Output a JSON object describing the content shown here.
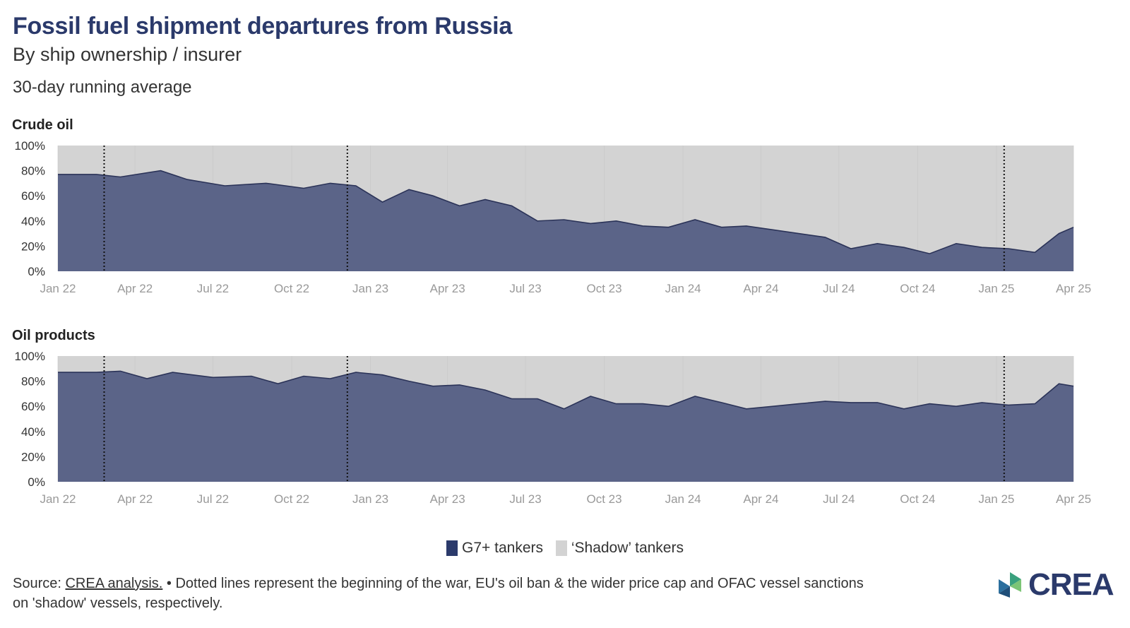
{
  "header": {
    "title": "Fossil fuel shipment departures from Russia",
    "subtitle": "By ship ownership / insurer",
    "note": "30-day running average"
  },
  "legend": {
    "items": [
      {
        "label": "G7+ tankers",
        "color": "#5b6488"
      },
      {
        "label": "‘Shadow’ tankers",
        "color": "#d3d3d3"
      }
    ]
  },
  "footer": {
    "source_prefix": "Source: ",
    "source_link": "CREA analysis.",
    "text": " • Dotted lines represent the beginning of the war, EU's oil ban & the wider price cap and OFAC vessel sanctions on 'shadow' vessels, respectively."
  },
  "logo": {
    "text": "CREA"
  },
  "colors": {
    "g7": "#5b6488",
    "g7_line": "#2b3358",
    "shadow": "#d3d3d3",
    "grid": "#c6c6c6",
    "tick": "#999999"
  },
  "chart_data": [
    {
      "type": "area",
      "title": "Crude oil",
      "x_ticks": [
        "Jan 22",
        "Apr 22",
        "Jul 22",
        "Oct 22",
        "Jan 23",
        "Apr 23",
        "Jul 23",
        "Oct 23",
        "Jan 24",
        "Apr 24",
        "Jul 24",
        "Oct 24",
        "Jan 25",
        "Apr 25"
      ],
      "y_ticks": [
        "0%",
        "20%",
        "40%",
        "60%",
        "80%",
        "100%"
      ],
      "ylim": [
        0,
        100
      ],
      "stacked": true,
      "event_lines": [
        "2022-02-24",
        "2022-12-05",
        "2025-01-10"
      ],
      "series": [
        {
          "name": "G7+ tankers",
          "x": [
            "2022-01-01",
            "2022-02-15",
            "2022-03-15",
            "2022-05-01",
            "2022-06-01",
            "2022-07-15",
            "2022-09-01",
            "2022-10-15",
            "2022-11-15",
            "2022-12-15",
            "2023-01-15",
            "2023-02-15",
            "2023-03-15",
            "2023-04-15",
            "2023-05-15",
            "2023-06-15",
            "2023-07-15",
            "2023-08-15",
            "2023-09-15",
            "2023-10-15",
            "2023-11-15",
            "2023-12-15",
            "2024-01-15",
            "2024-02-15",
            "2024-03-15",
            "2024-04-15",
            "2024-05-15",
            "2024-06-15",
            "2024-07-15",
            "2024-08-15",
            "2024-09-15",
            "2024-10-15",
            "2024-11-15",
            "2024-12-15",
            "2025-01-15",
            "2025-02-15",
            "2025-03-15",
            "2025-04-01"
          ],
          "values": [
            77,
            77,
            75,
            80,
            73,
            68,
            70,
            66,
            70,
            68,
            55,
            65,
            60,
            52,
            57,
            52,
            40,
            41,
            38,
            40,
            36,
            35,
            41,
            35,
            36,
            33,
            30,
            27,
            18,
            22,
            19,
            14,
            22,
            19,
            18,
            15,
            30,
            35
          ]
        },
        {
          "name": "‘Shadow’ tankers",
          "x": [
            "2022-01-01",
            "2022-02-15",
            "2022-03-15",
            "2022-05-01",
            "2022-06-01",
            "2022-07-15",
            "2022-09-01",
            "2022-10-15",
            "2022-11-15",
            "2022-12-15",
            "2023-01-15",
            "2023-02-15",
            "2023-03-15",
            "2023-04-15",
            "2023-05-15",
            "2023-06-15",
            "2023-07-15",
            "2023-08-15",
            "2023-09-15",
            "2023-10-15",
            "2023-11-15",
            "2023-12-15",
            "2024-01-15",
            "2024-02-15",
            "2024-03-15",
            "2024-04-15",
            "2024-05-15",
            "2024-06-15",
            "2024-07-15",
            "2024-08-15",
            "2024-09-15",
            "2024-10-15",
            "2024-11-15",
            "2024-12-15",
            "2025-01-15",
            "2025-02-15",
            "2025-03-15",
            "2025-04-01"
          ],
          "values": [
            23,
            23,
            25,
            20,
            27,
            32,
            30,
            34,
            30,
            32,
            45,
            35,
            40,
            48,
            43,
            48,
            60,
            59,
            62,
            60,
            64,
            65,
            59,
            65,
            64,
            67,
            70,
            73,
            82,
            78,
            81,
            86,
            78,
            81,
            82,
            85,
            70,
            65
          ]
        }
      ]
    },
    {
      "type": "area",
      "title": "Oil products",
      "x_ticks": [
        "Jan 22",
        "Apr 22",
        "Jul 22",
        "Oct 22",
        "Jan 23",
        "Apr 23",
        "Jul 23",
        "Oct 23",
        "Jan 24",
        "Apr 24",
        "Jul 24",
        "Oct 24",
        "Jan 25",
        "Apr 25"
      ],
      "y_ticks": [
        "0%",
        "20%",
        "40%",
        "60%",
        "80%",
        "100%"
      ],
      "ylim": [
        0,
        100
      ],
      "stacked": true,
      "event_lines": [
        "2022-02-24",
        "2022-12-05",
        "2025-01-10"
      ],
      "series": [
        {
          "name": "G7+ tankers",
          "x": [
            "2022-01-01",
            "2022-02-15",
            "2022-03-15",
            "2022-04-15",
            "2022-05-15",
            "2022-07-01",
            "2022-08-15",
            "2022-09-15",
            "2022-10-15",
            "2022-11-15",
            "2022-12-15",
            "2023-01-15",
            "2023-02-15",
            "2023-03-15",
            "2023-04-15",
            "2023-05-15",
            "2023-06-15",
            "2023-07-15",
            "2023-08-15",
            "2023-09-15",
            "2023-10-15",
            "2023-11-15",
            "2023-12-15",
            "2024-01-15",
            "2024-02-15",
            "2024-03-15",
            "2024-04-15",
            "2024-05-15",
            "2024-06-15",
            "2024-07-15",
            "2024-08-15",
            "2024-09-15",
            "2024-10-15",
            "2024-11-15",
            "2024-12-15",
            "2025-01-15",
            "2025-02-15",
            "2025-03-15",
            "2025-04-01"
          ],
          "values": [
            87,
            87,
            88,
            82,
            87,
            83,
            84,
            78,
            84,
            82,
            87,
            85,
            80,
            76,
            77,
            73,
            66,
            66,
            58,
            68,
            62,
            62,
            60,
            68,
            63,
            58,
            60,
            62,
            64,
            63,
            63,
            58,
            62,
            60,
            63,
            61,
            62,
            78,
            76
          ]
        },
        {
          "name": "‘Shadow’ tankers",
          "x": [
            "2022-01-01",
            "2022-02-15",
            "2022-03-15",
            "2022-04-15",
            "2022-05-15",
            "2022-07-01",
            "2022-08-15",
            "2022-09-15",
            "2022-10-15",
            "2022-11-15",
            "2022-12-15",
            "2023-01-15",
            "2023-02-15",
            "2023-03-15",
            "2023-04-15",
            "2023-05-15",
            "2023-06-15",
            "2023-07-15",
            "2023-08-15",
            "2023-09-15",
            "2023-10-15",
            "2023-11-15",
            "2023-12-15",
            "2024-01-15",
            "2024-02-15",
            "2024-03-15",
            "2024-04-15",
            "2024-05-15",
            "2024-06-15",
            "2024-07-15",
            "2024-08-15",
            "2024-09-15",
            "2024-10-15",
            "2024-11-15",
            "2024-12-15",
            "2025-01-15",
            "2025-02-15",
            "2025-03-15",
            "2025-04-01"
          ],
          "values": [
            13,
            13,
            12,
            18,
            13,
            17,
            16,
            22,
            16,
            18,
            13,
            15,
            20,
            24,
            23,
            27,
            34,
            34,
            42,
            32,
            38,
            38,
            40,
            32,
            37,
            42,
            40,
            38,
            36,
            37,
            37,
            42,
            38,
            40,
            37,
            39,
            38,
            22,
            24
          ]
        }
      ]
    }
  ]
}
